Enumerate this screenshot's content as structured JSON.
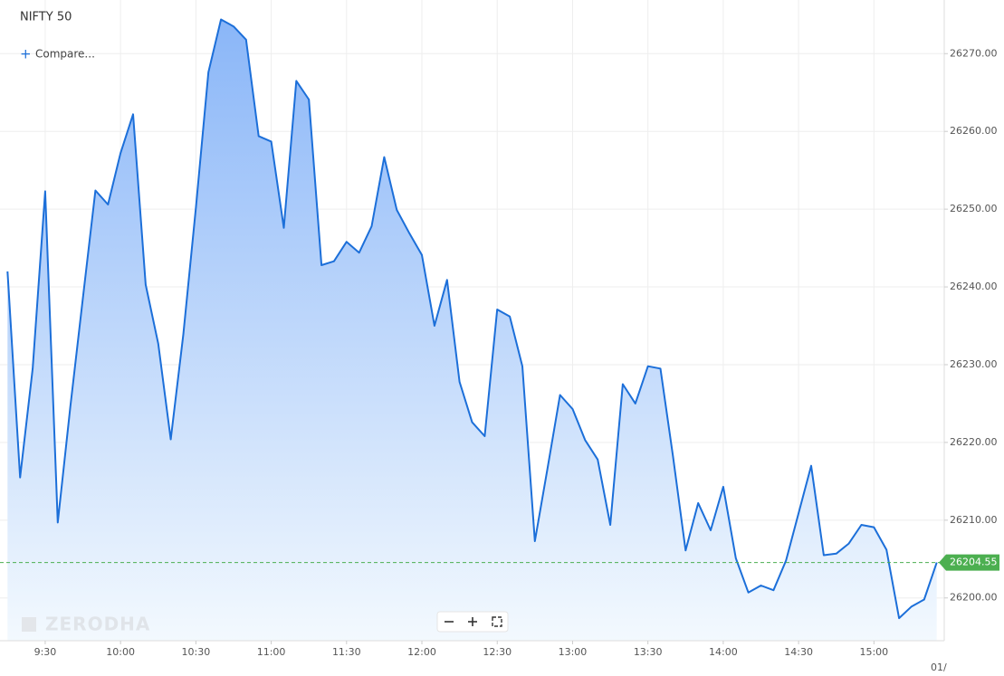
{
  "chart_data": {
    "type": "area",
    "title": "NIFTY 50",
    "x": [
      555,
      560,
      565,
      570,
      575,
      580,
      585,
      590,
      595,
      600,
      605,
      610,
      615,
      620,
      625,
      630,
      635,
      640,
      645,
      650,
      655,
      660,
      665,
      670,
      675,
      680,
      685,
      690,
      695,
      700,
      705,
      710,
      715,
      720,
      725,
      730,
      735,
      740,
      745,
      750,
      755,
      760,
      765,
      770,
      775,
      780,
      785,
      790,
      795,
      800,
      805,
      810,
      815,
      820,
      825,
      830,
      835,
      840,
      845,
      850,
      855,
      860,
      865,
      870,
      875,
      880,
      885,
      890,
      895,
      900,
      905,
      910,
      915,
      920,
      925
    ],
    "series": [
      {
        "name": "NIFTY 50",
        "color": "#1c6fd9",
        "values": [
          26242.0,
          26215.5,
          26229.5,
          26252.3,
          26209.7,
          26224.6,
          26238.5,
          26252.4,
          26250.6,
          26257.2,
          26262.2,
          26240.3,
          26232.7,
          26220.4,
          26233.9,
          26250.2,
          26267.6,
          26274.4,
          26273.5,
          26271.8,
          26259.4,
          26258.7,
          26247.6,
          26266.5,
          26264.1,
          26242.8,
          26243.3,
          26245.8,
          26244.4,
          26247.8,
          26256.7,
          26249.9,
          26246.9,
          26244.1,
          26235.0,
          26240.9,
          26227.8,
          26222.6,
          26220.8,
          26237.1,
          26236.2,
          26229.8,
          26207.3,
          26216.6,
          26226.1,
          26224.3,
          26220.3,
          26217.8,
          26209.4,
          26227.5,
          26225.0,
          26229.8,
          26229.5,
          26218.2,
          26206.1,
          26212.2,
          26208.7,
          26214.3,
          26205.1,
          26200.7,
          26201.6,
          26201.0,
          26204.8,
          26210.9,
          26217.0,
          26205.5,
          26205.7,
          26207.0,
          26209.4,
          26209.1,
          26206.2,
          26197.4,
          26198.9,
          26199.8,
          26204.55
        ]
      }
    ],
    "last_value": 26204.55,
    "last_value_color": "#4caf50",
    "xlim": [
      552,
      928
    ],
    "xticks": [
      {
        "value": 570,
        "label": "9:30"
      },
      {
        "value": 600,
        "label": "10:00"
      },
      {
        "value": 630,
        "label": "10:30"
      },
      {
        "value": 660,
        "label": "11:00"
      },
      {
        "value": 690,
        "label": "11:30"
      },
      {
        "value": 720,
        "label": "12:00"
      },
      {
        "value": 750,
        "label": "12:30"
      },
      {
        "value": 780,
        "label": "13:00"
      },
      {
        "value": 810,
        "label": "13:30"
      },
      {
        "value": 840,
        "label": "14:00"
      },
      {
        "value": 870,
        "label": "14:30"
      },
      {
        "value": 900,
        "label": "15:00"
      }
    ],
    "ylim": [
      26194.5,
      26276.9
    ],
    "yticks": [
      {
        "value": 26200,
        "label": "26200.00"
      },
      {
        "value": 26210,
        "label": "26210.00"
      },
      {
        "value": 26220,
        "label": "26220.00"
      },
      {
        "value": 26230,
        "label": "26230.00"
      },
      {
        "value": 26240,
        "label": "26240.00"
      },
      {
        "value": 26250,
        "label": "26250.00"
      },
      {
        "value": 26260,
        "label": "26260.00"
      },
      {
        "value": 26270,
        "label": "26270.00"
      }
    ],
    "grid": true
  },
  "ui": {
    "compare": "Compare...",
    "watermark": "ZERODHA",
    "date_stub": "01/"
  }
}
